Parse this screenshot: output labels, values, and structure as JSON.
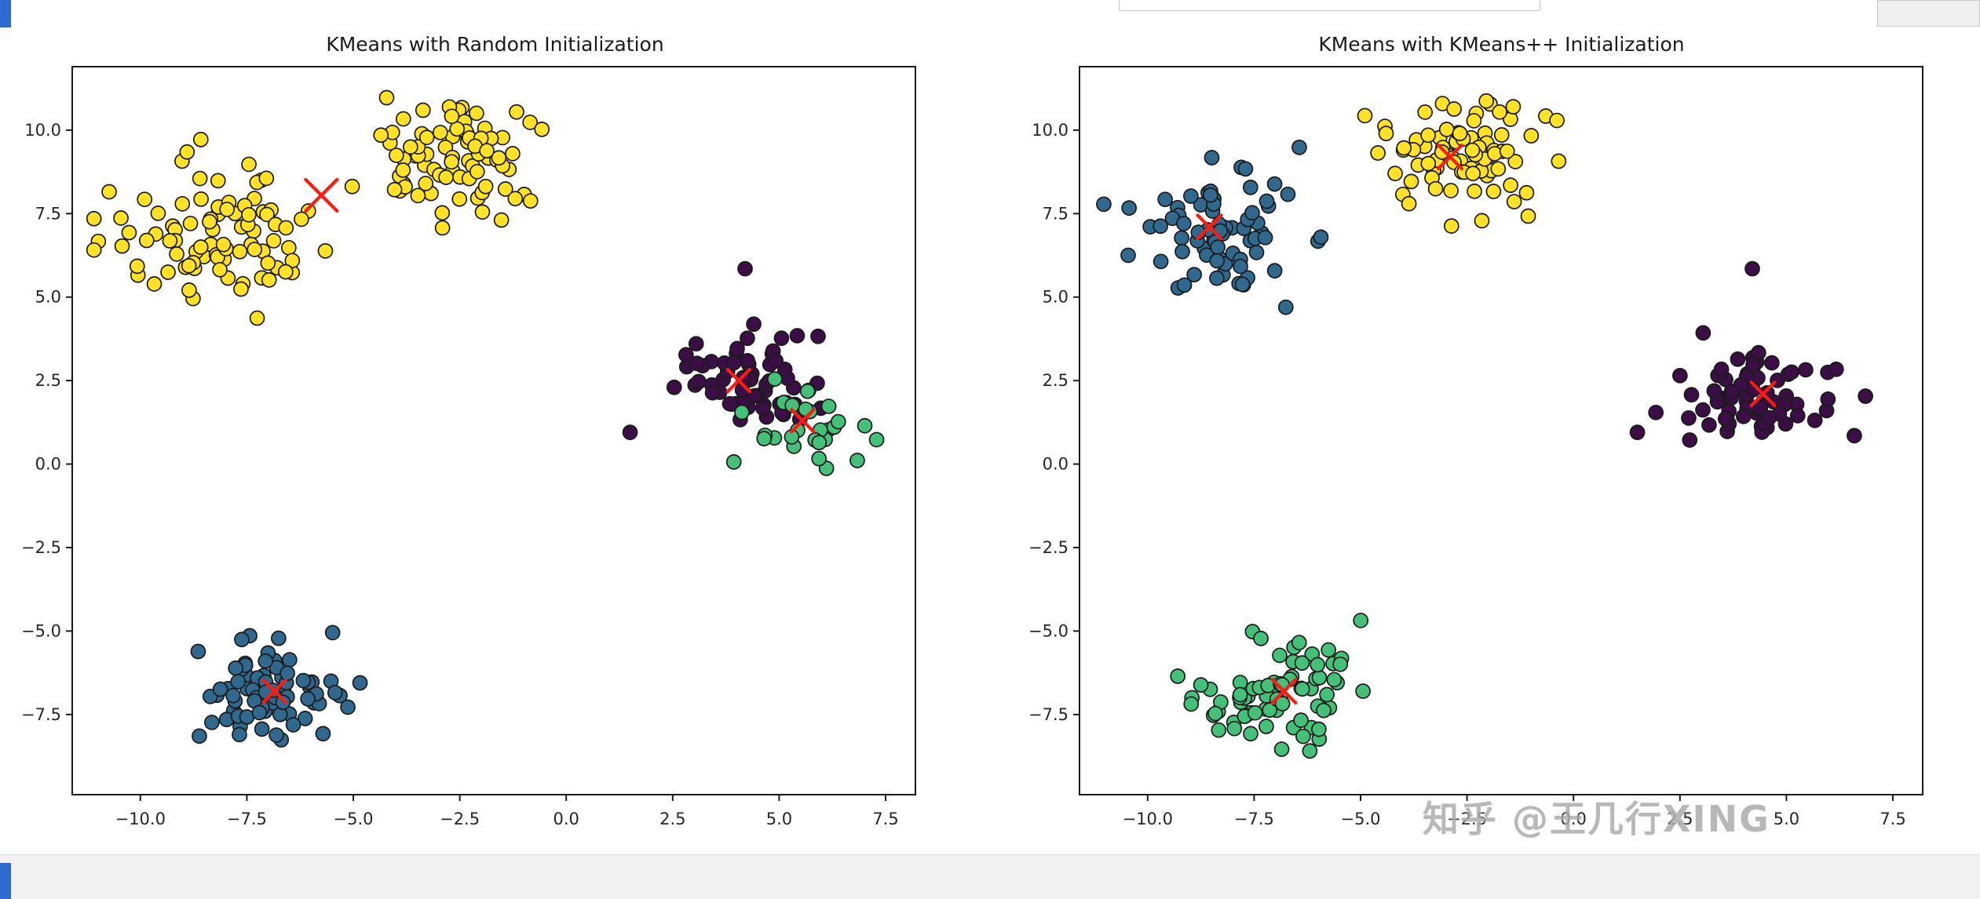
{
  "page": {
    "background": "#ffffff",
    "watermark": "知乎 @王几行XING",
    "accent_color": "#2e6ad1",
    "bottom_bar_color": "#f1f1f3"
  },
  "chart_data": [
    {
      "type": "scatter",
      "title": "KMeans with Random Initialization",
      "xlabel": "",
      "ylabel": "",
      "grid": false,
      "legend": "none",
      "xlim": [
        -11.6,
        8.2
      ],
      "ylim": [
        -9.9,
        11.9
      ],
      "xticks": [
        -10.0,
        -7.5,
        -5.0,
        -2.5,
        0.0,
        2.5,
        5.0,
        7.5
      ],
      "yticks": [
        10.0,
        7.5,
        5.0,
        2.5,
        0.0,
        -2.5,
        -5.0,
        -7.5
      ],
      "point_edge_color": "#1a1a1a",
      "centroid_color": "#ff1a10",
      "centroid_marker": "x",
      "seed": 11,
      "clusters": [
        {
          "name": "yellow-left-blob",
          "color": "#ffe226",
          "center": [
            -8.1,
            7.1
          ],
          "std": [
            1.15,
            1.05
          ],
          "count": 88
        },
        {
          "name": "yellow-top-blob",
          "color": "#ffe226",
          "center": [
            -2.6,
            9.1
          ],
          "std": [
            0.95,
            0.85
          ],
          "count": 78
        },
        {
          "name": "purple-blob",
          "color": "#3b0f45",
          "center": [
            4.3,
            2.5
          ],
          "std": [
            0.85,
            0.65
          ],
          "count": 60
        },
        {
          "name": "green-blob",
          "color": "#44c078",
          "center": [
            5.6,
            1.1
          ],
          "std": [
            0.75,
            0.62
          ],
          "count": 28
        },
        {
          "name": "blue-blob",
          "color": "#31688e",
          "center": [
            -7.0,
            -6.8
          ],
          "std": [
            0.88,
            0.82
          ],
          "count": 76
        }
      ],
      "outliers": [
        {
          "color": "#ffe226",
          "point": [
            -4.35,
            9.85
          ]
        },
        {
          "color": "#3b0f45",
          "point": [
            4.2,
            5.85
          ]
        },
        {
          "color": "#3b0f45",
          "point": [
            1.5,
            0.95
          ]
        }
      ],
      "centroids": [
        [
          -5.75,
          8.05,
          20
        ],
        [
          4.05,
          2.5,
          14
        ],
        [
          5.55,
          1.3,
          14
        ],
        [
          -6.85,
          -6.8,
          14
        ]
      ]
    },
    {
      "type": "scatter",
      "title": "KMeans with KMeans++ Initialization",
      "xlabel": "",
      "ylabel": "",
      "grid": false,
      "legend": "none",
      "xlim": [
        -11.6,
        8.2
      ],
      "ylim": [
        -9.9,
        11.9
      ],
      "xticks": [
        -10.0,
        -7.5,
        -5.0,
        -2.5,
        0.0,
        2.5,
        5.0,
        7.5
      ],
      "yticks": [
        10.0,
        7.5,
        5.0,
        2.5,
        0.0,
        -2.5,
        -5.0,
        -7.5
      ],
      "point_edge_color": "#1a1a1a",
      "centroid_color": "#ff1a10",
      "centroid_marker": "x",
      "seed": 23,
      "clusters": [
        {
          "name": "blue-topleft-blob",
          "color": "#31688e",
          "center": [
            -8.3,
            7.1
          ],
          "std": [
            1.05,
            1.0
          ],
          "count": 72
        },
        {
          "name": "yellow-top-blob",
          "color": "#ffe226",
          "center": [
            -2.6,
            9.1
          ],
          "std": [
            0.95,
            0.85
          ],
          "count": 78
        },
        {
          "name": "purple-right-blob",
          "color": "#3b0f45",
          "center": [
            4.4,
            2.3
          ],
          "std": [
            1.0,
            0.7
          ],
          "count": 68
        },
        {
          "name": "green-bottom-blob",
          "color": "#44c078",
          "center": [
            -6.9,
            -6.8
          ],
          "std": [
            0.92,
            0.85
          ],
          "count": 74
        }
      ],
      "outliers": [
        {
          "color": "#ffe226",
          "point": [
            -4.4,
            9.9
          ]
        },
        {
          "color": "#3b0f45",
          "point": [
            4.2,
            5.85
          ]
        },
        {
          "color": "#3b0f45",
          "point": [
            1.5,
            0.95
          ]
        }
      ],
      "centroids": [
        [
          -8.55,
          7.1,
          15
        ],
        [
          -2.9,
          9.2,
          15
        ],
        [
          4.45,
          2.1,
          15
        ],
        [
          -6.8,
          -6.8,
          15
        ]
      ]
    }
  ]
}
